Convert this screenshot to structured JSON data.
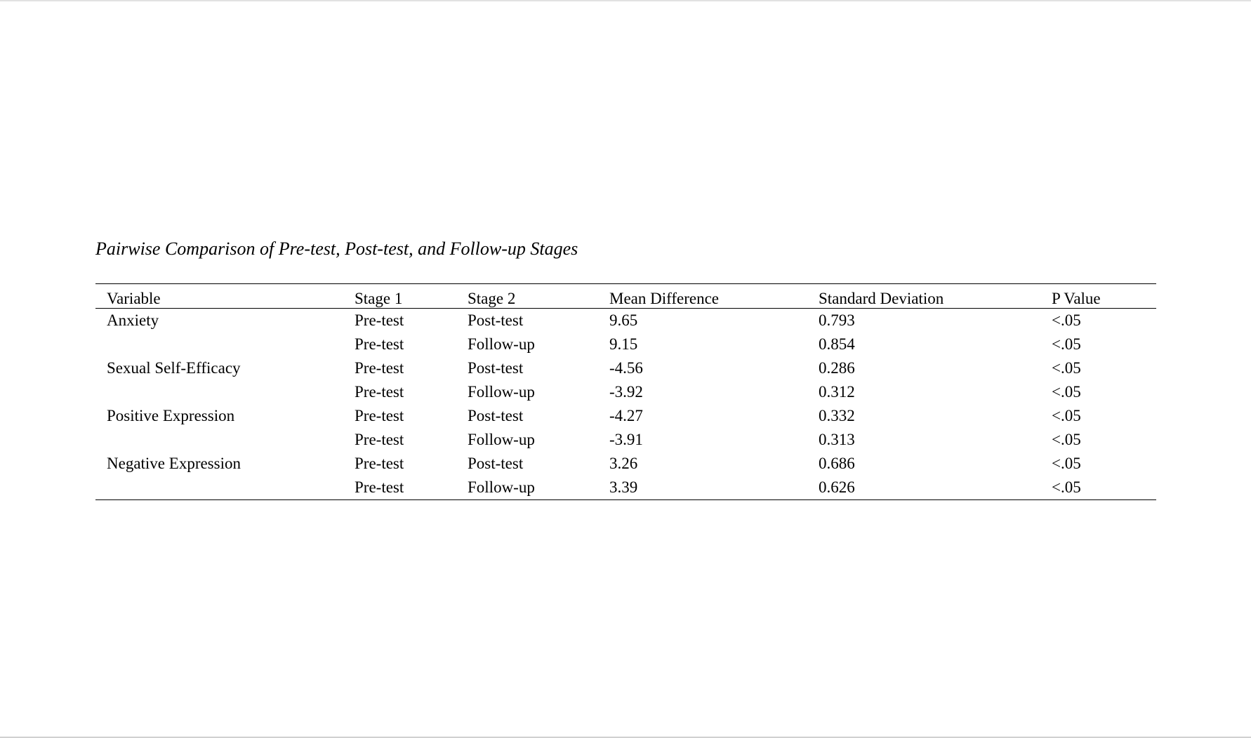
{
  "title": "Pairwise Comparison of Pre-test, Post-test, and Follow-up Stages",
  "columns": [
    "Variable",
    "Stage 1",
    "Stage 2",
    "Mean Difference",
    "Standard Deviation",
    "P Value"
  ],
  "rows": [
    [
      "Anxiety",
      "Pre-test",
      "Post-test",
      "9.65",
      "0.793",
      "<.05"
    ],
    [
      "",
      "Pre-test",
      "Follow-up",
      "9.15",
      "0.854",
      "<.05"
    ],
    [
      "Sexual Self-Efficacy",
      "Pre-test",
      "Post-test",
      "-4.56",
      "0.286",
      "<.05"
    ],
    [
      "",
      "Pre-test",
      "Follow-up",
      "-3.92",
      "0.312",
      "<.05"
    ],
    [
      "Positive Expression",
      "Pre-test",
      "Post-test",
      "-4.27",
      "0.332",
      "<.05"
    ],
    [
      "",
      "Pre-test",
      "Follow-up",
      "-3.91",
      "0.313",
      "<.05"
    ],
    [
      "Negative Expression",
      "Pre-test",
      "Post-test",
      "3.26",
      "0.686",
      "<.05"
    ],
    [
      "",
      "Pre-test",
      "Follow-up",
      "3.39",
      "0.626",
      "<.05"
    ]
  ]
}
